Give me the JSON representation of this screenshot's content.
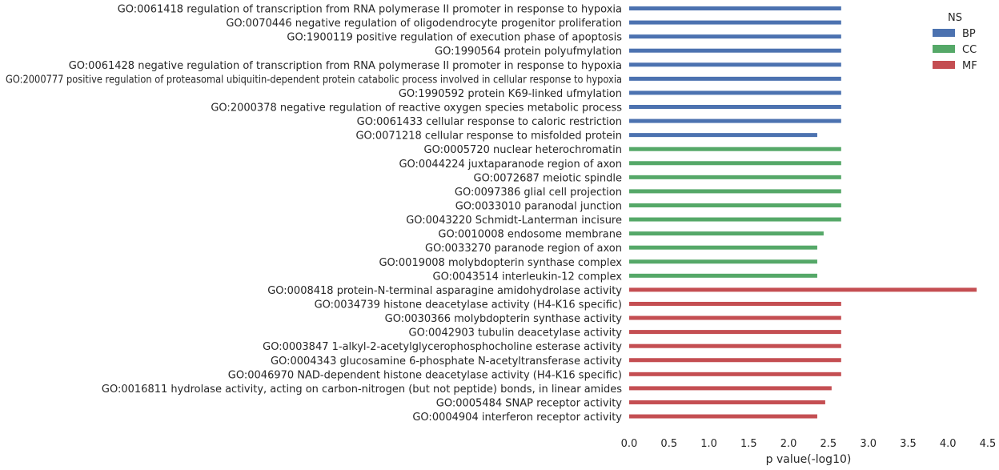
{
  "chart_data": {
    "type": "bar",
    "orientation": "horizontal",
    "xlabel": "p value(-log10)",
    "ylabel": "",
    "xlim": [
      0,
      4.5
    ],
    "x_ticks": [
      "0.0",
      "0.5",
      "1.0",
      "1.5",
      "2.0",
      "2.5",
      "3.0",
      "3.5",
      "4.0",
      "4.5"
    ],
    "grid": false,
    "legend": {
      "title": "NS",
      "placement": "top-right",
      "entries": [
        {
          "name": "BP",
          "color": "#4C72B0"
        },
        {
          "name": "CC",
          "color": "#55A868"
        },
        {
          "name": "MF",
          "color": "#C44E52"
        }
      ]
    },
    "categories": [
      "GO:0061418 regulation of transcription from RNA polymerase II promoter in response to hypoxia",
      "GO:0070446 negative regulation of oligodendrocyte progenitor proliferation",
      "GO:1900119 positive regulation of execution phase of apoptosis",
      "GO:1990564 protein polyufmylation",
      "GO:0061428 negative regulation of transcription from RNA polymerase II promoter in response to hypoxia",
      "GO:2000777 positive regulation of proteasomal ubiquitin-dependent protein catabolic process involved in cellular response to hypoxia",
      "GO:1990592 protein K69-linked ufmylation",
      "GO:2000378 negative regulation of reactive oxygen species metabolic process",
      "GO:0061433 cellular response to caloric restriction",
      "GO:0071218 cellular response to misfolded protein",
      "GO:0005720 nuclear heterochromatin",
      "GO:0044224 juxtaparanode region of axon",
      "GO:0072687 meiotic spindle",
      "GO:0097386 glial cell projection",
      "GO:0033010 paranodal junction",
      "GO:0043220 Schmidt-Lanterman incisure",
      "GO:0010008 endosome membrane",
      "GO:0033270 paranode region of axon",
      "GO:0019008 molybdopterin synthase complex",
      "GO:0043514 interleukin-12 complex",
      "GO:0008418 protein-N-terminal asparagine amidohydrolase activity",
      "GO:0034739 histone deacetylase activity (H4-K16 specific)",
      "GO:0030366 molybdopterin synthase activity",
      "GO:0042903 tubulin deacetylase activity",
      "GO:0003847 1-alkyl-2-acetylglycerophosphocholine esterase activity",
      "GO:0004343 glucosamine 6-phosphate N-acetyltransferase activity",
      "GO:0046970 NAD-dependent histone deacetylase activity (H4-K16 specific)",
      "GO:0016811 hydrolase activity, acting on carbon-nitrogen (but not peptide) bonds, in linear amides",
      "GO:0005484 SNAP receptor activity",
      "GO:0004904 interferon receptor activity"
    ],
    "ns": [
      "BP",
      "BP",
      "BP",
      "BP",
      "BP",
      "BP",
      "BP",
      "BP",
      "BP",
      "BP",
      "CC",
      "CC",
      "CC",
      "CC",
      "CC",
      "CC",
      "CC",
      "CC",
      "CC",
      "CC",
      "MF",
      "MF",
      "MF",
      "MF",
      "MF",
      "MF",
      "MF",
      "MF",
      "MF",
      "MF"
    ],
    "values": [
      2.66,
      2.66,
      2.66,
      2.66,
      2.66,
      2.66,
      2.66,
      2.66,
      2.66,
      2.36,
      2.66,
      2.66,
      2.66,
      2.66,
      2.66,
      2.66,
      2.44,
      2.36,
      2.36,
      2.36,
      4.36,
      2.66,
      2.66,
      2.66,
      2.66,
      2.66,
      2.66,
      2.54,
      2.46,
      2.36
    ]
  }
}
